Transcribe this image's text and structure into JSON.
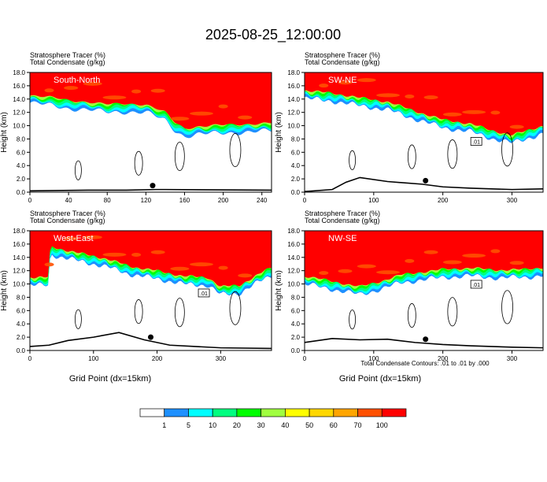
{
  "title": "2025-08-25_12:00:00",
  "panel_labels": {
    "field1": "Stratosphere Tracer    (%)",
    "field2": "Total Condensate    (g/kg)"
  },
  "ylabel": "Height (km)",
  "xlabel": "Grid Point (dx=15km)",
  "contour_note": "Total Condensate Contours: .01 to .01 by .000",
  "colorbar": {
    "labels": [
      "1",
      "5",
      "10",
      "20",
      "30",
      "40",
      "50",
      "60",
      "70",
      "100"
    ],
    "colors": [
      "#ffffff",
      "#1e90ff",
      "#00ffff",
      "#00ff80",
      "#00ff00",
      "#a0ff40",
      "#ffff00",
      "#ffd700",
      "#ffa500",
      "#ff5000",
      "#ff0000"
    ]
  },
  "chart_data": [
    {
      "type": "heatmap",
      "name": "South-North",
      "xlim": [
        0,
        250
      ],
      "xticks": [
        "0",
        "40",
        "80",
        "120",
        "160",
        "200",
        "240"
      ],
      "xtick_values": [
        0,
        40,
        80,
        120,
        160,
        200,
        240
      ],
      "ylim": [
        0,
        18
      ],
      "yticks": [
        "0.0",
        "2.0",
        "4.0",
        "6.0",
        "8.0",
        "10.0",
        "12.0",
        "14.0",
        "16.0",
        "18.0"
      ],
      "tropopause_profile": [
        [
          0,
          14.6
        ],
        [
          20,
          14.3
        ],
        [
          40,
          13.8
        ],
        [
          60,
          13.6
        ],
        [
          80,
          13.2
        ],
        [
          100,
          13.3
        ],
        [
          120,
          13.2
        ],
        [
          140,
          12.0
        ],
        [
          150,
          10.5
        ],
        [
          160,
          9.6
        ],
        [
          175,
          9.9
        ],
        [
          200,
          10.1
        ],
        [
          250,
          10.4
        ]
      ],
      "terrain": [
        [
          0,
          0.2
        ],
        [
          60,
          0.3
        ],
        [
          100,
          0.3
        ],
        [
          130,
          0.4
        ],
        [
          140,
          0.4
        ],
        [
          250,
          0.3
        ]
      ],
      "marker_x": 127
    },
    {
      "type": "heatmap",
      "name": "SW-NE",
      "xlim": [
        0,
        345
      ],
      "xticks": [
        "0",
        "100",
        "200",
        "300"
      ],
      "xtick_values": [
        0,
        100,
        200,
        300
      ],
      "ylim": [
        0,
        18
      ],
      "yticks": [
        "0.0",
        "2.0",
        "4.0",
        "6.0",
        "8.0",
        "10.0",
        "12.0",
        "14.0",
        "16.0",
        "18.0"
      ],
      "tropopause_profile": [
        [
          0,
          15.3
        ],
        [
          40,
          14.9
        ],
        [
          80,
          14.2
        ],
        [
          120,
          13.6
        ],
        [
          160,
          12.2
        ],
        [
          200,
          10.9
        ],
        [
          240,
          10.3
        ],
        [
          270,
          9.3
        ],
        [
          300,
          8.6
        ],
        [
          320,
          9.2
        ],
        [
          345,
          10.0
        ]
      ],
      "terrain": [
        [
          0,
          0.1
        ],
        [
          40,
          0.4
        ],
        [
          60,
          1.5
        ],
        [
          80,
          2.2
        ],
        [
          120,
          1.6
        ],
        [
          170,
          1.2
        ],
        [
          200,
          0.8
        ],
        [
          240,
          0.6
        ],
        [
          300,
          0.4
        ],
        [
          345,
          0.5
        ]
      ],
      "marker_x": 175,
      "label_box": ".01"
    },
    {
      "type": "heatmap",
      "name": "West-East",
      "xlim": [
        0,
        380
      ],
      "xticks": [
        "0",
        "100",
        "200",
        "300"
      ],
      "xtick_values": [
        0,
        100,
        200,
        300
      ],
      "ylim": [
        0,
        18
      ],
      "yticks": [
        "0.0",
        "2.0",
        "4.0",
        "6.0",
        "8.0",
        "10.0",
        "12.0",
        "14.0",
        "16.0",
        "18.0"
      ],
      "tropopause_profile": [
        [
          0,
          11.0
        ],
        [
          30,
          11.0
        ],
        [
          32,
          15.6
        ],
        [
          80,
          14.6
        ],
        [
          120,
          13.8
        ],
        [
          160,
          12.6
        ],
        [
          200,
          12.0
        ],
        [
          240,
          11.2
        ],
        [
          280,
          11.0
        ],
        [
          300,
          9.6
        ],
        [
          330,
          9.8
        ],
        [
          360,
          11.5
        ],
        [
          380,
          12.5
        ]
      ],
      "terrain": [
        [
          0,
          0.6
        ],
        [
          30,
          0.8
        ],
        [
          60,
          1.5
        ],
        [
          100,
          2.0
        ],
        [
          140,
          2.7
        ],
        [
          180,
          1.6
        ],
        [
          220,
          0.8
        ],
        [
          260,
          0.6
        ],
        [
          300,
          0.4
        ],
        [
          380,
          0.3
        ]
      ],
      "marker_x": 190,
      "label_box": ".01"
    },
    {
      "type": "heatmap",
      "name": "NW-SE",
      "xlim": [
        0,
        345
      ],
      "xticks": [
        "0",
        "100",
        "200",
        "300"
      ],
      "xtick_values": [
        0,
        100,
        200,
        300
      ],
      "ylim": [
        0,
        18
      ],
      "yticks": [
        "0.0",
        "2.0",
        "4.0",
        "6.0",
        "8.0",
        "10.0",
        "12.0",
        "14.0",
        "16.0",
        "18.0"
      ],
      "tropopause_profile": [
        [
          0,
          11.2
        ],
        [
          40,
          10.4
        ],
        [
          80,
          9.6
        ],
        [
          110,
          10.4
        ],
        [
          140,
          11.4
        ],
        [
          170,
          11.8
        ],
        [
          200,
          12.2
        ],
        [
          240,
          12.4
        ],
        [
          280,
          12.1
        ],
        [
          320,
          12.2
        ],
        [
          345,
          12.5
        ]
      ],
      "terrain": [
        [
          0,
          1.2
        ],
        [
          40,
          1.8
        ],
        [
          80,
          1.6
        ],
        [
          120,
          1.7
        ],
        [
          160,
          1.2
        ],
        [
          200,
          0.9
        ],
        [
          240,
          0.7
        ],
        [
          300,
          0.5
        ],
        [
          345,
          0.4
        ]
      ],
      "marker_x": 175,
      "label_box": ".01"
    }
  ]
}
